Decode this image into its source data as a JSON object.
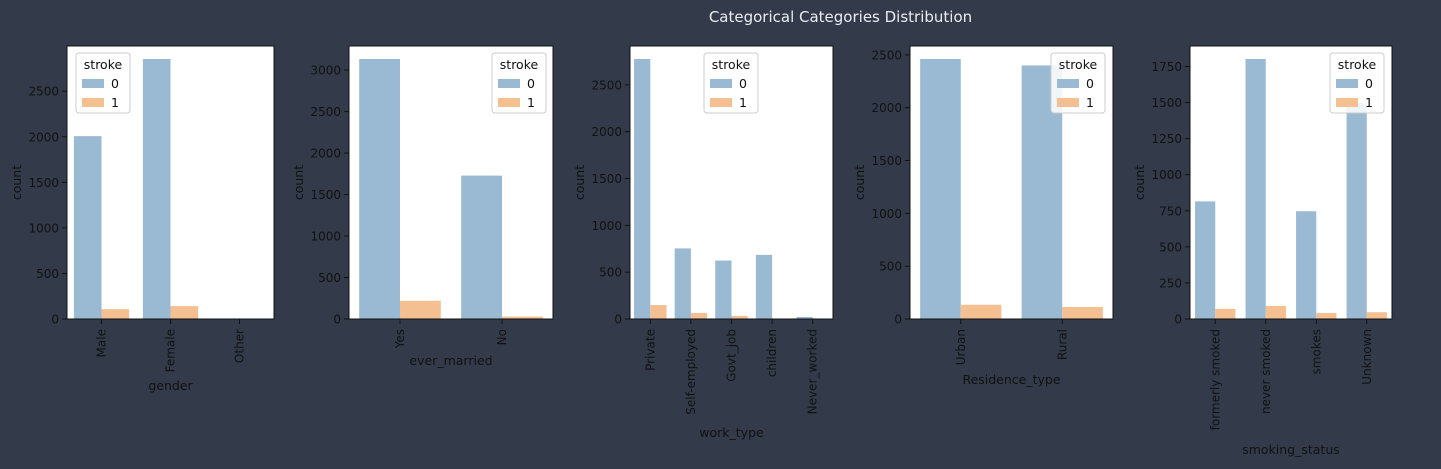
{
  "figure": {
    "title": "Categorical Categories Distribution"
  },
  "colors": {
    "series_0": "#9ab9d3",
    "series_1": "#f4bf91",
    "background": "#333b4a"
  },
  "chart_data": [
    {
      "type": "bar",
      "categories": [
        "Male",
        "Female",
        "Other"
      ],
      "series": [
        {
          "name": "0",
          "values": [
            2007,
            2853,
            1
          ]
        },
        {
          "name": "1",
          "values": [
            108,
            141,
            0
          ]
        }
      ],
      "xlabel": "gender",
      "ylabel": "count",
      "yticks": [
        0,
        500,
        1000,
        1500,
        2000,
        2500
      ],
      "ylim": [
        0,
        2996
      ],
      "legend": {
        "title": "stroke",
        "placement": "top-left"
      }
    },
    {
      "type": "bar",
      "categories": [
        "Yes",
        "No"
      ],
      "series": [
        {
          "name": "0",
          "values": [
            3133,
            1728
          ]
        },
        {
          "name": "1",
          "values": [
            220,
            29
          ]
        }
      ],
      "xlabel": "ever_married",
      "ylabel": "count",
      "yticks": [
        0,
        500,
        1000,
        1500,
        2000,
        2500,
        3000
      ],
      "ylim": [
        0,
        3290
      ],
      "legend": {
        "title": "stroke",
        "placement": "top-right"
      }
    },
    {
      "type": "bar",
      "categories": [
        "Private",
        "Self-employed",
        "Govt_job",
        "children",
        "Never_worked"
      ],
      "series": [
        {
          "name": "0",
          "values": [
            2776,
            754,
            624,
            685,
            22
          ]
        },
        {
          "name": "1",
          "values": [
            149,
            65,
            33,
            2,
            0
          ]
        }
      ],
      "xlabel": "work_type",
      "ylabel": "count",
      "yticks": [
        0,
        500,
        1000,
        1500,
        2000,
        2500
      ],
      "ylim": [
        0,
        2915
      ],
      "legend": {
        "title": "stroke",
        "placement": "top-center"
      }
    },
    {
      "type": "bar",
      "categories": [
        "Urban",
        "Rural"
      ],
      "series": [
        {
          "name": "0",
          "values": [
            2461,
            2400
          ]
        },
        {
          "name": "1",
          "values": [
            135,
            114
          ]
        }
      ],
      "xlabel": "Residence_type",
      "ylabel": "count",
      "yticks": [
        0,
        500,
        1000,
        1500,
        2000,
        2500
      ],
      "ylim": [
        0,
        2584
      ],
      "legend": {
        "title": "stroke",
        "placement": "top-right"
      }
    },
    {
      "type": "bar",
      "categories": [
        "formerly smoked",
        "never smoked",
        "smokes",
        "Unknown"
      ],
      "series": [
        {
          "name": "0",
          "values": [
            815,
            1802,
            747,
            1497
          ]
        },
        {
          "name": "1",
          "values": [
            70,
            90,
            42,
            47
          ]
        }
      ],
      "xlabel": "smoking_status",
      "ylabel": "count",
      "yticks": [
        0,
        250,
        500,
        750,
        1000,
        1250,
        1500,
        1750
      ],
      "ylim": [
        0,
        1892
      ],
      "legend": {
        "title": "stroke",
        "placement": "top-right"
      }
    }
  ]
}
